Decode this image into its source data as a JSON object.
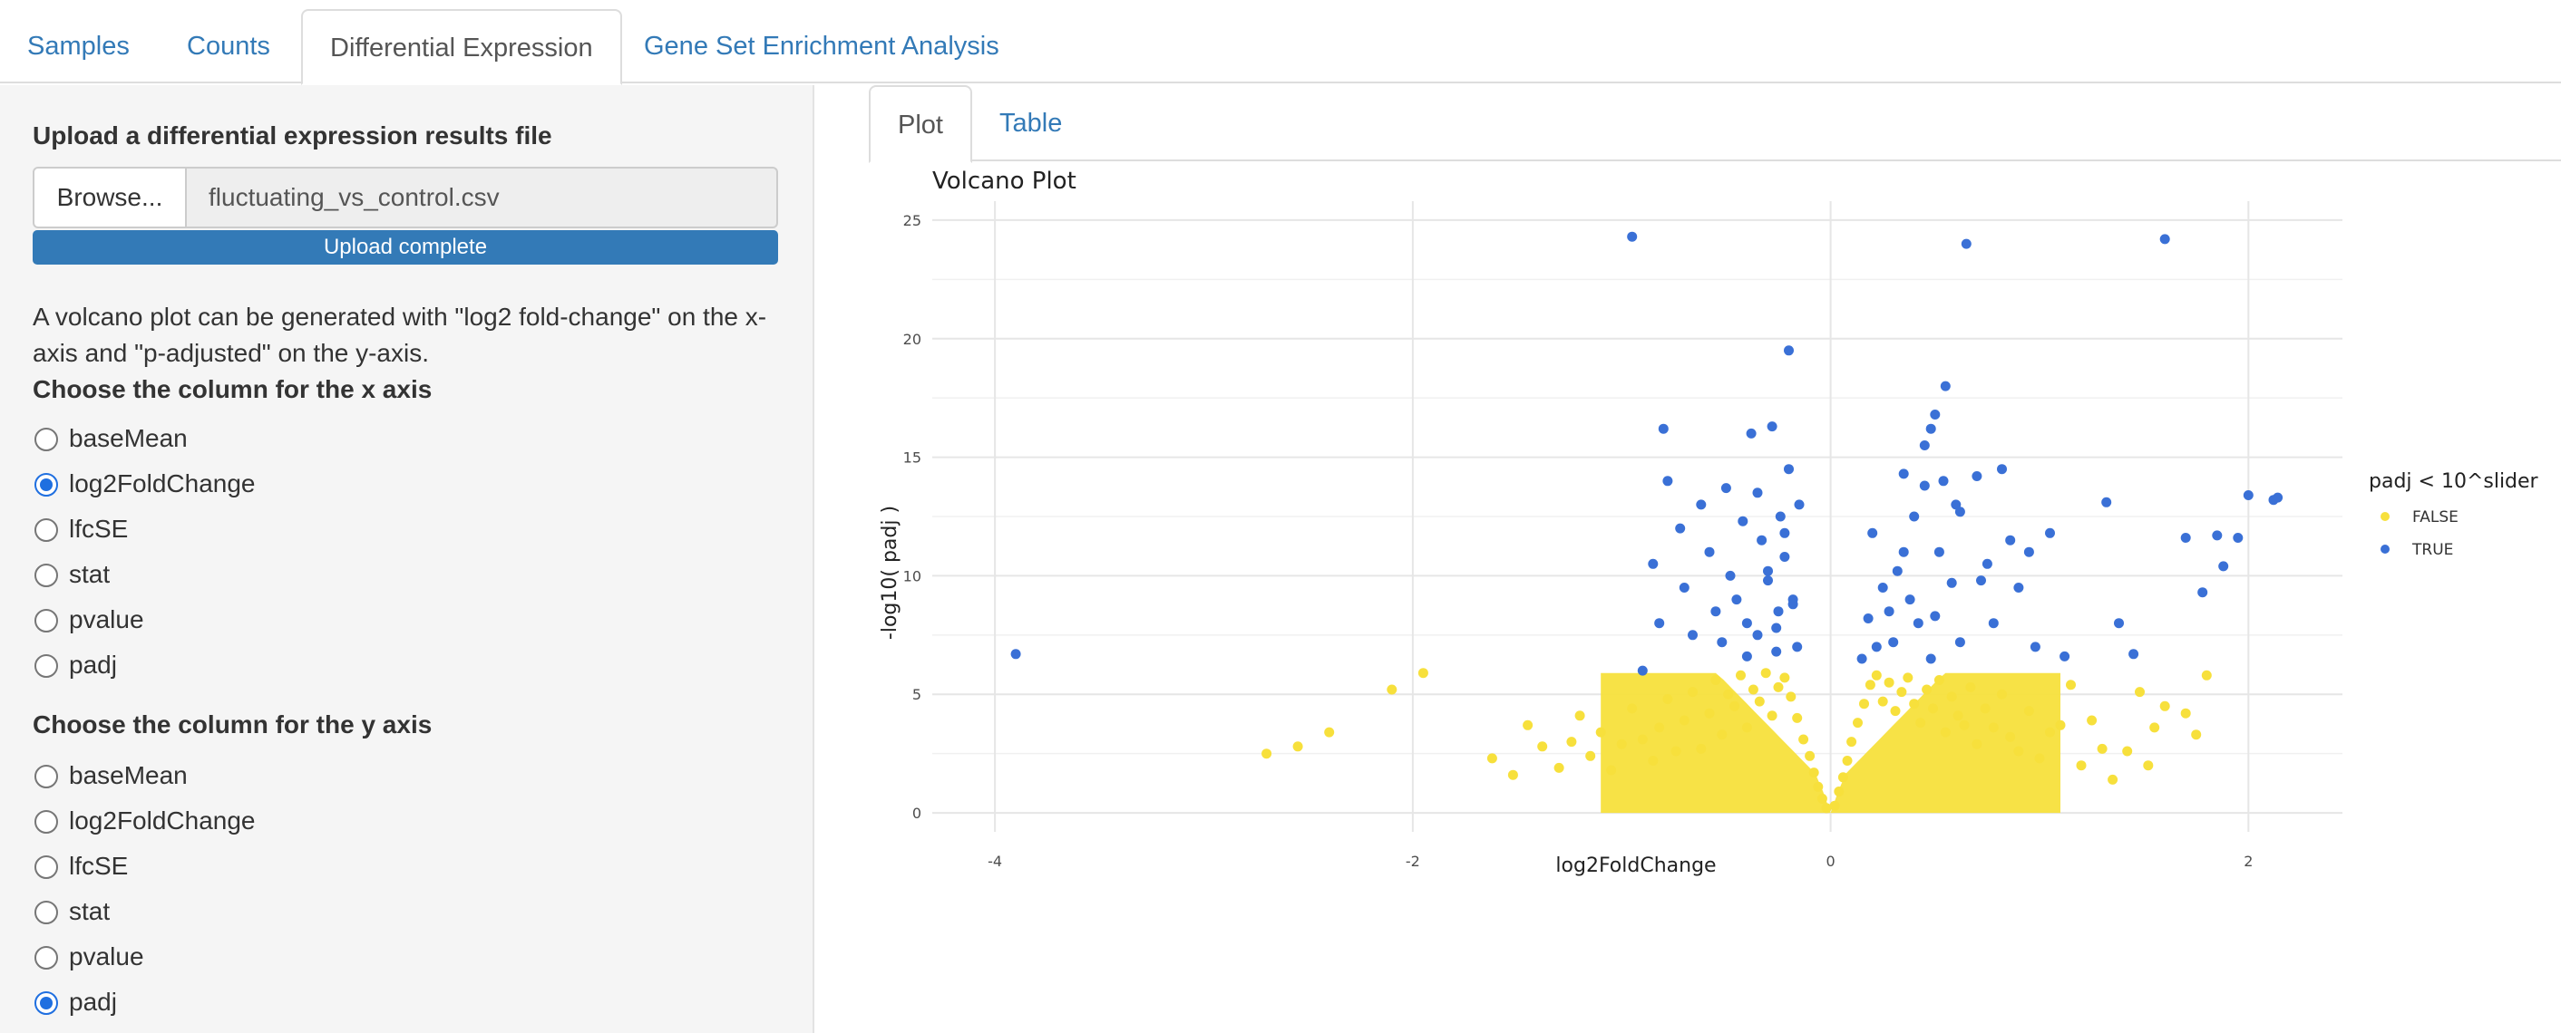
{
  "top_tabs": [
    {
      "label": "Samples",
      "active": false
    },
    {
      "label": "Counts",
      "active": false
    },
    {
      "label": "Differential Expression",
      "active": true
    },
    {
      "label": "Gene Set Enrichment Analysis",
      "active": false
    }
  ],
  "sidebar": {
    "upload_label": "Upload a differential expression results file",
    "browse_label": "Browse...",
    "file_name": "fluctuating_vs_control.csv",
    "progress_text": "Upload complete",
    "progress_value": 1.0,
    "description": "A volcano plot can be generated with \"log2 fold-change\" on the x-axis and \"p-adjusted\" on the y-axis.",
    "x_axis": {
      "label": "Choose the column for the x axis",
      "options": [
        "baseMean",
        "log2FoldChange",
        "lfcSE",
        "stat",
        "pvalue",
        "padj"
      ],
      "selected": "log2FoldChange"
    },
    "y_axis": {
      "label": "Choose the column for the y axis",
      "options": [
        "baseMean",
        "log2FoldChange",
        "lfcSE",
        "stat",
        "pvalue",
        "padj"
      ],
      "selected": "padj"
    }
  },
  "inner_tabs": [
    {
      "label": "Plot",
      "active": true
    },
    {
      "label": "Table",
      "active": false
    }
  ],
  "colors": {
    "accent": "#337ab7",
    "false_points": "#f7e03c",
    "true_points": "#3a70d6",
    "radio_checked": "#1f6fe0"
  },
  "chart_data": {
    "type": "scatter",
    "title": "Volcano Plot",
    "xlabel": "log2FoldChange",
    "ylabel": "-log10( padj )",
    "xlim": [
      -4.3,
      2.45
    ],
    "ylim": [
      -0.8,
      25.8
    ],
    "xticks": [
      -4,
      -2,
      0,
      2
    ],
    "yticks": [
      0,
      5,
      10,
      15,
      20,
      25
    ],
    "grid": true,
    "legend": {
      "title": "padj < 10^slider",
      "position": "right",
      "entries": [
        "FALSE",
        "TRUE"
      ]
    },
    "series": [
      {
        "name": "FALSE",
        "color": "#f7e03c",
        "x": [
          -2.7,
          -2.55,
          -2.4,
          -2.1,
          -1.95,
          -1.62,
          -1.52,
          -1.45,
          -1.38,
          -1.3,
          -1.24,
          -1.2,
          -1.15,
          -1.1,
          -1.05,
          -1.0,
          -0.95,
          -0.9,
          -0.85,
          -0.82,
          -0.78,
          -0.74,
          -0.7,
          -0.66,
          -0.62,
          -0.58,
          -0.55,
          -0.52,
          -0.49,
          -0.46,
          -0.43,
          -0.4,
          -0.37,
          -0.34,
          -0.31,
          -0.28,
          -0.25,
          -0.22,
          -0.19,
          -0.16,
          -0.13,
          -0.1,
          -0.08,
          -0.06,
          -0.04,
          -0.02,
          0.02,
          0.04,
          0.06,
          0.08,
          0.1,
          0.13,
          0.16,
          0.19,
          0.22,
          0.25,
          0.28,
          0.31,
          0.34,
          0.37,
          0.4,
          0.43,
          0.46,
          0.49,
          0.52,
          0.55,
          0.58,
          0.61,
          0.64,
          0.67,
          0.7,
          0.74,
          0.78,
          0.82,
          0.86,
          0.9,
          0.95,
          1.0,
          1.05,
          1.1,
          1.15,
          1.2,
          1.25,
          1.3,
          1.35,
          1.42,
          1.48,
          1.52,
          1.55,
          1.6,
          1.7,
          1.75,
          1.8
        ],
        "y": [
          2.5,
          2.8,
          3.4,
          5.2,
          5.9,
          2.3,
          1.6,
          3.7,
          2.8,
          1.9,
          3.0,
          4.1,
          2.4,
          3.4,
          1.8,
          2.9,
          4.4,
          3.1,
          2.2,
          3.6,
          4.8,
          2.6,
          3.9,
          5.1,
          2.7,
          4.2,
          5.6,
          3.3,
          5.0,
          4.5,
          5.8,
          3.6,
          5.2,
          4.7,
          5.9,
          4.1,
          5.3,
          5.7,
          4.9,
          4.0,
          3.1,
          2.4,
          1.7,
          1.1,
          0.6,
          0.2,
          0.3,
          0.9,
          1.5,
          2.2,
          3.0,
          3.8,
          4.6,
          5.4,
          5.8,
          4.7,
          5.5,
          4.3,
          5.1,
          5.7,
          4.6,
          3.8,
          5.2,
          4.4,
          5.6,
          3.4,
          4.9,
          4.1,
          3.7,
          5.3,
          2.9,
          4.4,
          3.6,
          5.0,
          3.2,
          2.6,
          4.3,
          2.3,
          3.4,
          3.7,
          5.4,
          2.0,
          3.9,
          2.7,
          1.4,
          2.6,
          5.1,
          2.0,
          3.6,
          4.5,
          4.2,
          3.3,
          5.8
        ]
      },
      {
        "name": "TRUE",
        "color": "#3a70d6",
        "x": [
          -3.9,
          -0.95,
          -0.9,
          -0.85,
          -0.82,
          -0.8,
          -0.78,
          -0.72,
          -0.7,
          -0.66,
          -0.62,
          -0.58,
          -0.55,
          -0.52,
          -0.5,
          -0.48,
          -0.45,
          -0.42,
          -0.4,
          -0.38,
          -0.35,
          -0.33,
          -0.3,
          -0.28,
          -0.26,
          -0.24,
          -0.22,
          -0.2,
          -0.18,
          -0.16,
          -0.15,
          -0.2,
          -0.25,
          -0.3,
          -0.35,
          -0.4,
          -0.22,
          -0.18,
          -0.26,
          0.15,
          0.18,
          0.2,
          0.22,
          0.25,
          0.28,
          0.3,
          0.32,
          0.35,
          0.38,
          0.4,
          0.42,
          0.45,
          0.48,
          0.5,
          0.52,
          0.55,
          0.58,
          0.6,
          0.62,
          0.65,
          0.7,
          0.75,
          0.78,
          0.82,
          0.86,
          0.9,
          0.95,
          0.98,
          1.05,
          1.12,
          1.32,
          1.38,
          1.45,
          1.6,
          1.7,
          1.78,
          1.85,
          1.88,
          1.95,
          2.0,
          2.12,
          2.14,
          0.48,
          0.54,
          0.62,
          0.45,
          0.5,
          0.35,
          0.72
        ],
        "y": [
          6.7,
          24.3,
          6.0,
          10.5,
          8.0,
          16.2,
          14.0,
          12.0,
          9.5,
          7.5,
          13.0,
          11.0,
          8.5,
          7.2,
          13.7,
          10.0,
          9.0,
          12.3,
          8.0,
          16.0,
          13.5,
          11.5,
          9.8,
          16.3,
          7.8,
          12.5,
          10.8,
          19.5,
          9.0,
          7.0,
          13.0,
          14.5,
          8.5,
          10.2,
          7.5,
          6.6,
          11.8,
          8.8,
          6.8,
          6.5,
          8.2,
          11.8,
          7.0,
          9.5,
          8.5,
          7.2,
          10.2,
          14.3,
          9.0,
          12.5,
          8.0,
          13.8,
          6.5,
          16.8,
          11.0,
          18.0,
          9.7,
          13.0,
          7.2,
          24.0,
          14.2,
          10.5,
          8.0,
          14.5,
          11.5,
          9.5,
          11.0,
          7.0,
          11.8,
          6.6,
          13.1,
          8.0,
          6.7,
          24.2,
          11.6,
          9.3,
          11.7,
          10.4,
          11.6,
          13.4,
          13.2,
          13.3,
          16.2,
          14.0,
          12.7,
          15.5,
          8.3,
          11.0,
          9.8
        ]
      }
    ]
  }
}
